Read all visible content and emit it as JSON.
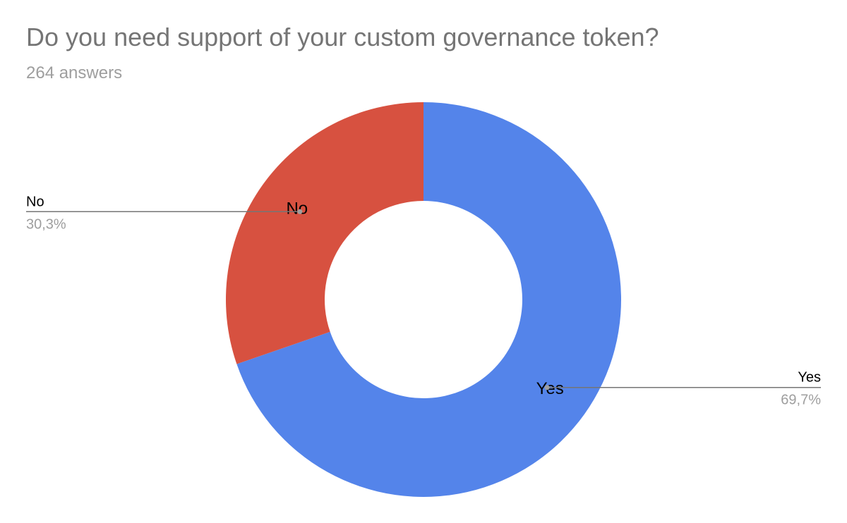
{
  "chart_data": {
    "type": "pie",
    "donut": true,
    "title": "Do you need support of your custom governance token?",
    "subtitle": "264 answers",
    "slices": [
      {
        "label": "Yes",
        "percent_label": "69,7%",
        "value": 69.7,
        "color": "#5484ea"
      },
      {
        "label": "No",
        "percent_label": "30,3%",
        "value": 30.3,
        "color": "#d75140"
      }
    ],
    "start_angle_deg": 0,
    "direction": "clockwise",
    "leader_line_color": "#757575"
  }
}
